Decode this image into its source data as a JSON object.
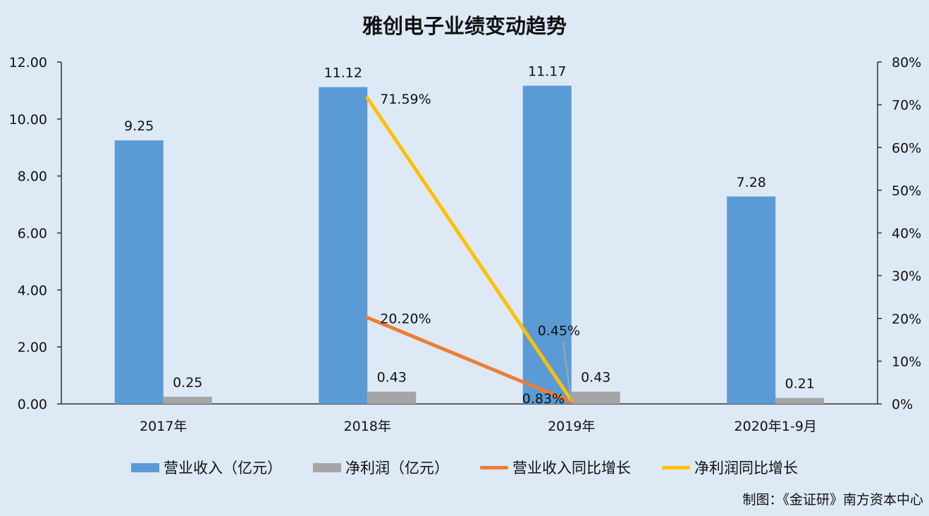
{
  "colors": {
    "background": "#dde9f5",
    "revenue_bar": "#5b9bd5",
    "profit_bar": "#a5a5a5",
    "revenue_growth_line": "#ed7d31",
    "profit_growth_line": "#ffc000"
  },
  "legend": {
    "revenue": "营业收入（亿元）",
    "profit": "净利润（亿元）",
    "revenue_growth": "营业收入同比增长",
    "profit_growth": "净利润同比增长"
  },
  "credit": "制图：《金证研》南方资本中心",
  "chart_data": {
    "type": "bar",
    "title": "雅创电子业绩变动趋势",
    "categories": [
      "2017年",
      "2018年",
      "2019年",
      "2020年1-9月"
    ],
    "y_left": {
      "ylim": [
        0,
        12
      ],
      "ticks": [
        "0.00",
        "2.00",
        "4.00",
        "6.00",
        "8.00",
        "10.00",
        "12.00"
      ]
    },
    "y_right": {
      "ylim": [
        0,
        80
      ],
      "ticks": [
        "0%",
        "10%",
        "20%",
        "30%",
        "40%",
        "50%",
        "60%",
        "70%",
        "80%"
      ]
    },
    "bar_series": [
      {
        "name": "营业收入（亿元）",
        "values": [
          9.25,
          11.12,
          11.17,
          7.28
        ],
        "labels": [
          "9.25",
          "11.12",
          "11.17",
          "7.28"
        ]
      },
      {
        "name": "净利润（亿元）",
        "values": [
          0.25,
          0.43,
          0.43,
          0.21
        ],
        "labels": [
          "0.25",
          "0.43",
          "0.43",
          "0.21"
        ]
      }
    ],
    "line_series": [
      {
        "name": "营业收入同比增长",
        "values": [
          null,
          20.2,
          0.45,
          null
        ],
        "labels": [
          "",
          "20.20%",
          "0.45%",
          ""
        ]
      },
      {
        "name": "净利润同比增长",
        "values": [
          null,
          71.59,
          0.83,
          null
        ],
        "labels": [
          "",
          "71.59%",
          "0.83%",
          ""
        ]
      }
    ],
    "legend_position": "bottom",
    "grid": false
  }
}
